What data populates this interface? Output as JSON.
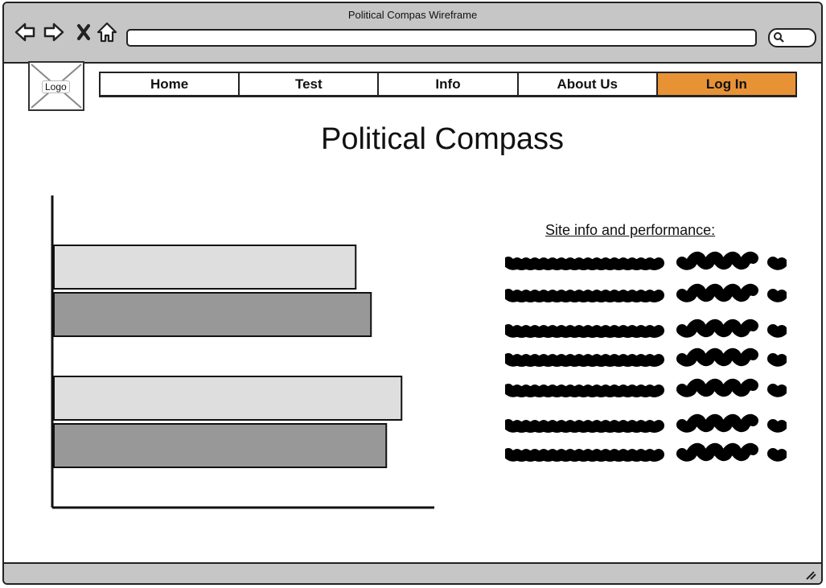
{
  "window": {
    "title": "Political Compas Wireframe"
  },
  "toolbar": {
    "back_icon": "back-arrow-icon",
    "forward_icon": "forward-arrow-icon",
    "stop_icon": "close-icon",
    "home_icon": "home-icon",
    "address_value": "",
    "search_icon": "search-icon"
  },
  "header": {
    "logo_label": "Logo",
    "nav": [
      {
        "label": "Home"
      },
      {
        "label": "Test"
      },
      {
        "label": "Info"
      },
      {
        "label": "About Us"
      },
      {
        "label": "Log In"
      }
    ],
    "accent_color": "#e89236"
  },
  "main": {
    "title": "Political Compass",
    "info_heading": "Site info and performance:"
  },
  "chart_data": {
    "type": "bar",
    "orientation": "horizontal",
    "title": "",
    "xlabel": "",
    "ylabel": "",
    "categories": [
      "",
      ""
    ],
    "series": [
      {
        "values": [
          79,
          91
        ],
        "color": "#dedede"
      },
      {
        "values": [
          83,
          87
        ],
        "color": "#989898"
      }
    ],
    "xlim": [
      0,
      100
    ],
    "grid": false
  }
}
